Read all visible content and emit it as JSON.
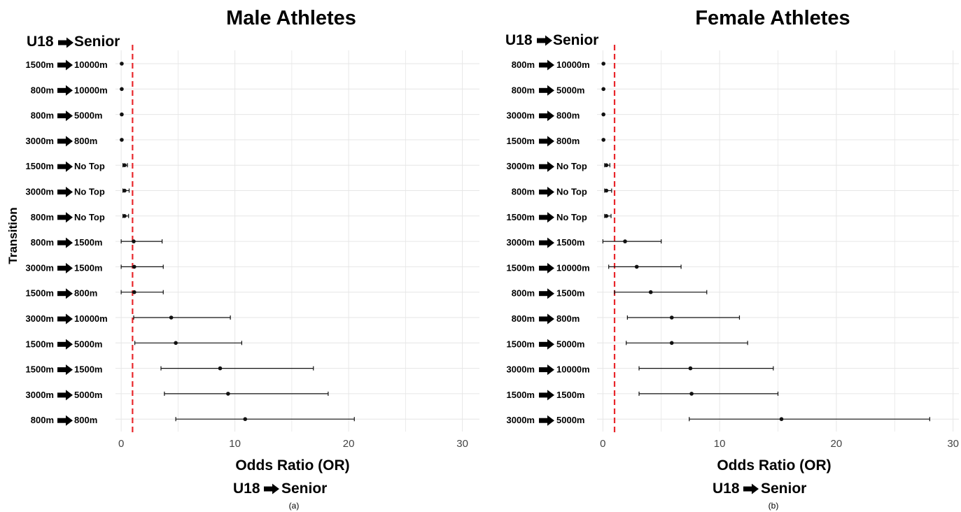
{
  "figure": {
    "y_axis_label": "Transition",
    "x_axis_label": "Odds Ratio (OR)",
    "arrow_left": "U18",
    "arrow_right": "Senior"
  },
  "chart_data": [
    {
      "type": "forest",
      "title": "Male Athletes",
      "subtitle": "U18 ➡ Senior",
      "panel_label": "(a)",
      "xlabel": "Odds Ratio (OR)",
      "xlabel_sub": "U18 ➡ Senior",
      "ylabel": "Transition",
      "xlim": [
        -0.5,
        31.5
      ],
      "xticks": [
        0,
        10,
        20,
        30
      ],
      "reference_line": 1,
      "grid": true,
      "rows": [
        {
          "from": "1500m",
          "to": "10000m",
          "or": 0.05,
          "lo": null,
          "hi": null
        },
        {
          "from": "800m",
          "to": "10000m",
          "or": 0.05,
          "lo": null,
          "hi": null
        },
        {
          "from": "800m",
          "to": "5000m",
          "or": 0.05,
          "lo": null,
          "hi": null
        },
        {
          "from": "3000m",
          "to": "800m",
          "or": 0.05,
          "lo": null,
          "hi": null
        },
        {
          "from": "1500m",
          "to": "No Top",
          "or": 0.3,
          "lo": 0.15,
          "hi": 0.55
        },
        {
          "from": "3000m",
          "to": "No Top",
          "or": 0.3,
          "lo": 0.15,
          "hi": 0.7
        },
        {
          "from": "800m",
          "to": "No Top",
          "or": 0.3,
          "lo": 0.15,
          "hi": 0.65
        },
        {
          "from": "800m",
          "to": "1500m",
          "or": 1.1,
          "lo": 0.0,
          "hi": 3.6
        },
        {
          "from": "3000m",
          "to": "1500m",
          "or": 1.15,
          "lo": 0.0,
          "hi": 3.7
        },
        {
          "from": "1500m",
          "to": "800m",
          "or": 1.15,
          "lo": 0.0,
          "hi": 3.7
        },
        {
          "from": "3000m",
          "to": "10000m",
          "or": 4.4,
          "lo": 1.1,
          "hi": 9.6
        },
        {
          "from": "1500m",
          "to": "5000m",
          "or": 4.8,
          "lo": 1.2,
          "hi": 10.6
        },
        {
          "from": "1500m",
          "to": "1500m",
          "or": 8.7,
          "lo": 3.5,
          "hi": 16.9
        },
        {
          "from": "3000m",
          "to": "5000m",
          "or": 9.4,
          "lo": 3.8,
          "hi": 18.2
        },
        {
          "from": "800m",
          "to": "800m",
          "or": 10.9,
          "lo": 4.8,
          "hi": 20.5
        }
      ]
    },
    {
      "type": "forest",
      "title": "Female Athletes",
      "subtitle": "U18 ➡ Senior",
      "panel_label": "(b)",
      "xlabel": "Odds Ratio (OR)",
      "xlabel_sub": "U18 ➡ Senior",
      "ylabel": "",
      "xlim": [
        -0.5,
        30.5
      ],
      "xticks": [
        0,
        10,
        20,
        30
      ],
      "reference_line": 1,
      "grid": true,
      "rows": [
        {
          "from": "800m",
          "to": "10000m",
          "or": 0.05,
          "lo": null,
          "hi": null
        },
        {
          "from": "800m",
          "to": "5000m",
          "or": 0.05,
          "lo": null,
          "hi": null
        },
        {
          "from": "3000m",
          "to": "800m",
          "or": 0.05,
          "lo": null,
          "hi": null
        },
        {
          "from": "1500m",
          "to": "800m",
          "or": 0.05,
          "lo": null,
          "hi": null
        },
        {
          "from": "3000m",
          "to": "No Top",
          "or": 0.3,
          "lo": 0.15,
          "hi": 0.6
        },
        {
          "from": "800m",
          "to": "No Top",
          "or": 0.3,
          "lo": 0.15,
          "hi": 0.75
        },
        {
          "from": "1500m",
          "to": "No Top",
          "or": 0.3,
          "lo": 0.15,
          "hi": 0.7
        },
        {
          "from": "3000m",
          "to": "1500m",
          "or": 1.9,
          "lo": 0.0,
          "hi": 5.0
        },
        {
          "from": "1500m",
          "to": "10000m",
          "or": 2.9,
          "lo": 0.5,
          "hi": 6.7
        },
        {
          "from": "800m",
          "to": "1500m",
          "or": 4.1,
          "lo": 1.0,
          "hi": 8.9
        },
        {
          "from": "800m",
          "to": "800m",
          "or": 5.9,
          "lo": 2.1,
          "hi": 11.7
        },
        {
          "from": "1500m",
          "to": "5000m",
          "or": 5.9,
          "lo": 2.0,
          "hi": 12.4
        },
        {
          "from": "3000m",
          "to": "10000m",
          "or": 7.5,
          "lo": 3.1,
          "hi": 14.6
        },
        {
          "from": "1500m",
          "to": "1500m",
          "or": 7.6,
          "lo": 3.1,
          "hi": 15.0
        },
        {
          "from": "3000m",
          "to": "5000m",
          "or": 15.3,
          "lo": 7.4,
          "hi": 28.0
        }
      ]
    }
  ],
  "colors": {
    "reference_line": "#e8262b",
    "marker": "#111111",
    "grid": "#e6e6e6",
    "text": "#000000",
    "tick_text": "#444444"
  }
}
